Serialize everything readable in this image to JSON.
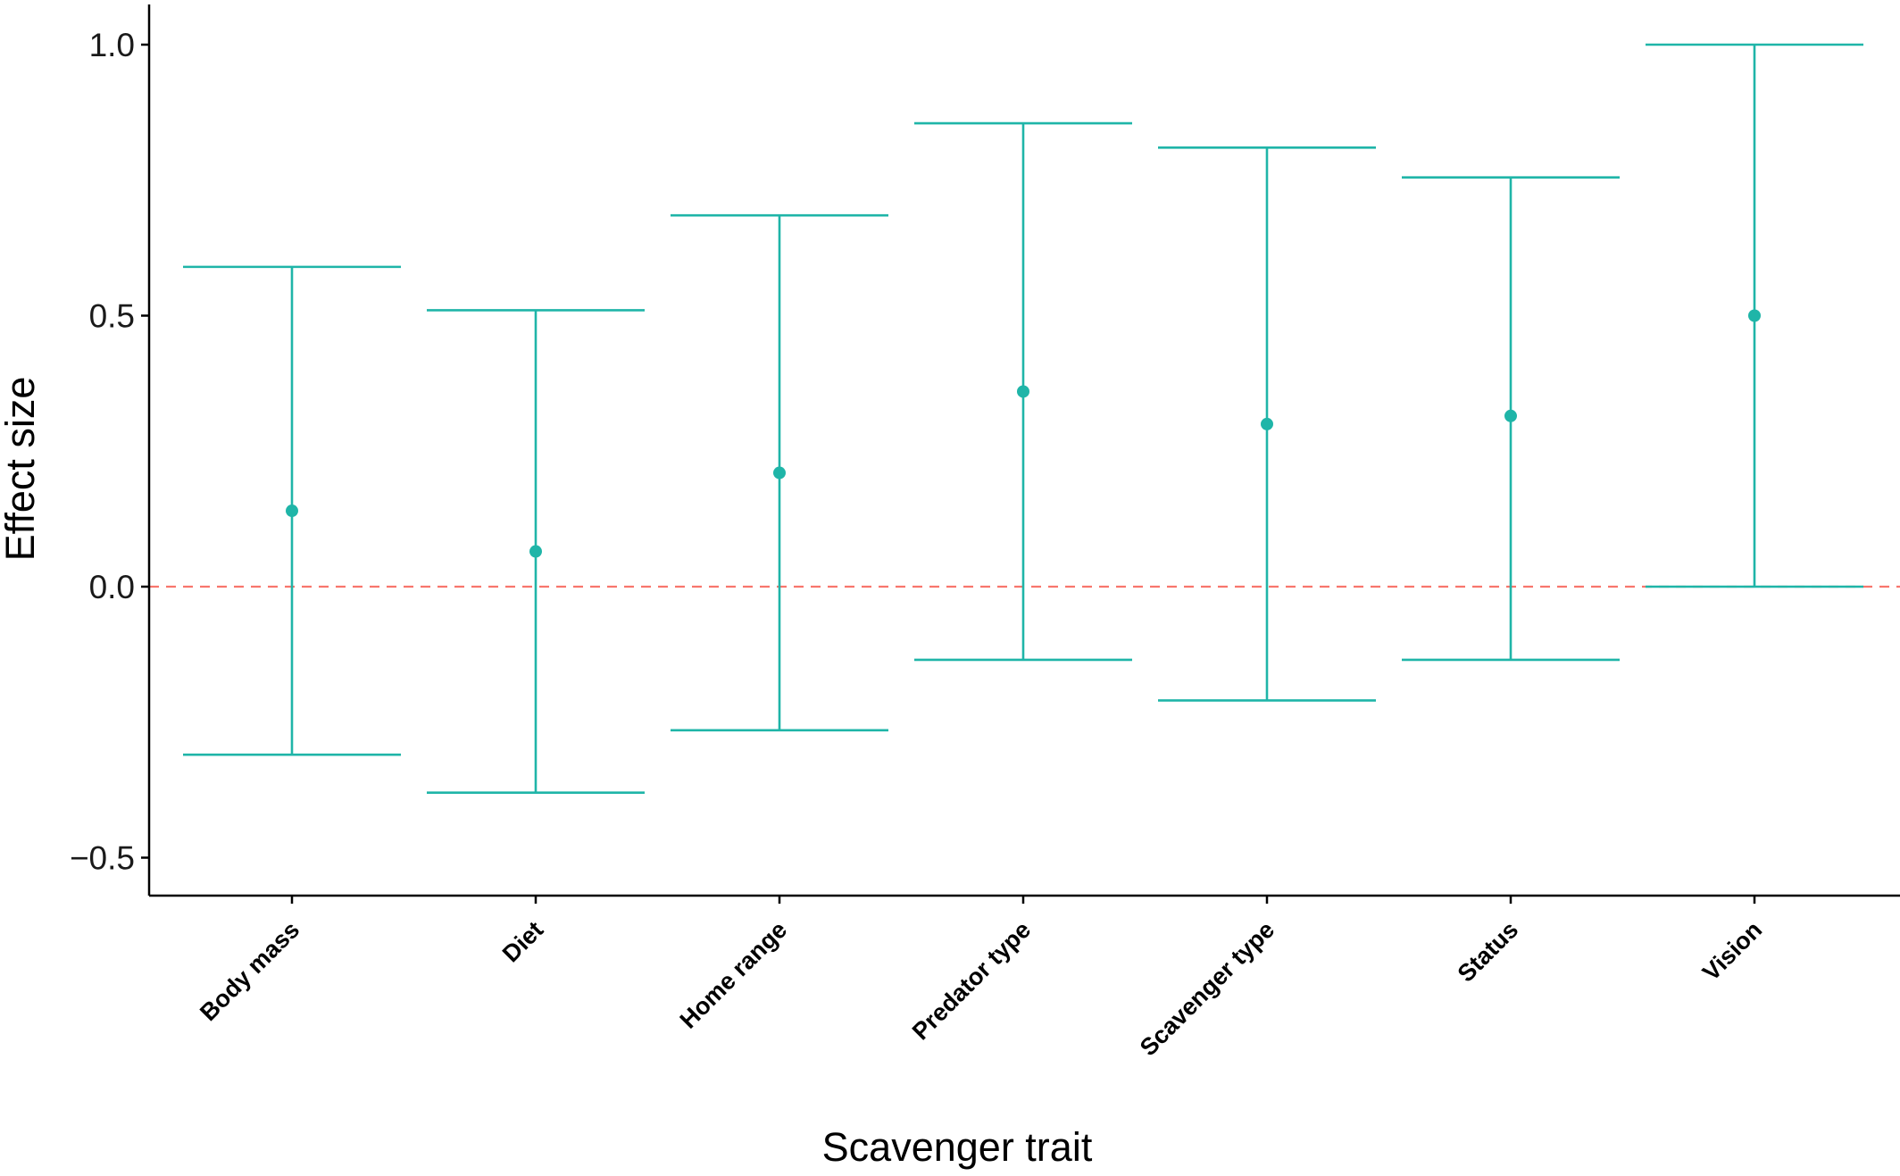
{
  "chart_data": {
    "type": "errorbar",
    "title": "",
    "xlabel": "Scavenger trait",
    "ylabel": "Effect size",
    "ylim": [
      -0.57,
      1.07
    ],
    "yticks": [
      -0.5,
      0.0,
      0.5,
      1.0
    ],
    "ytick_labels": [
      "−0.5",
      "0.0",
      "0.5",
      "1.0"
    ],
    "grid": false,
    "reference_line": {
      "y": 0.0,
      "style": "dashed",
      "color": "#f8766d"
    },
    "series_color": "#1fb5a8",
    "categories": [
      "Body mass",
      "Diet",
      "Home range",
      "Predator type",
      "Scavenger type",
      "Status",
      "Vision"
    ],
    "estimates": [
      0.14,
      0.065,
      0.21,
      0.36,
      0.3,
      0.315,
      0.5
    ],
    "lower": [
      -0.31,
      -0.38,
      -0.265,
      -0.135,
      -0.21,
      -0.135,
      0.0
    ],
    "upper": [
      0.59,
      0.51,
      0.685,
      0.855,
      0.81,
      0.755,
      1.0
    ]
  }
}
